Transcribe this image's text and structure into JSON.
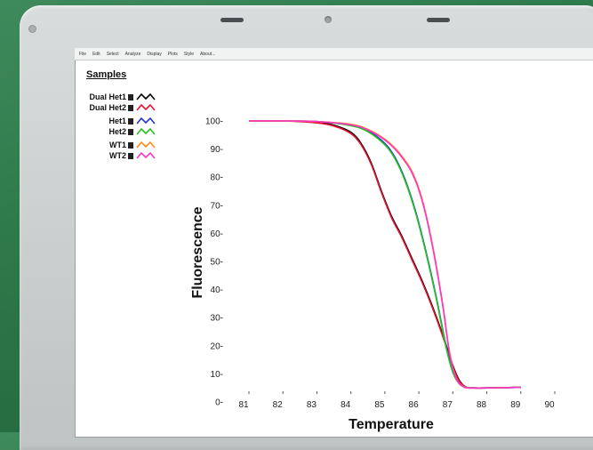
{
  "menu": {
    "items": [
      "File",
      "Edit",
      "Select",
      "Analyze",
      "Display",
      "Plots",
      "Style",
      "About..."
    ]
  },
  "legend": {
    "title": "Samples",
    "items": [
      {
        "label": "Dual Het1",
        "color": "#000000"
      },
      {
        "label": "Dual Het2",
        "color": "#e8102c"
      },
      {
        "label": "Het1",
        "color": "#2233cc"
      },
      {
        "label": "Het2",
        "color": "#22c422"
      },
      {
        "label": "WT1",
        "color": "#ff8c1a"
      },
      {
        "label": "WT2",
        "color": "#ff33cc"
      }
    ]
  },
  "chart_data": {
    "type": "line",
    "title": "",
    "xlabel": "Temperature",
    "ylabel": "Fluorescence",
    "xlim": [
      81,
      90
    ],
    "ylim": [
      0,
      100
    ],
    "x_ticks": [
      "81",
      "82",
      "83",
      "84",
      "85",
      "86",
      "87",
      "88",
      "89",
      "90"
    ],
    "y_ticks": [
      "0-",
      "10-",
      "20-",
      "30-",
      "40-",
      "50-",
      "60-",
      "70-",
      "80-",
      "90-",
      "100-"
    ],
    "grid": false,
    "legend_position": "top-left",
    "series": [
      {
        "name": "Dual Het1",
        "color": "#000000",
        "x": [
          81.0,
          82.0,
          83.0,
          83.5,
          84.0,
          84.3,
          84.6,
          84.9,
          85.2,
          85.5,
          85.8,
          86.1,
          86.4,
          86.7,
          87.0,
          87.2,
          87.4,
          87.6,
          88.0,
          89.0
        ],
        "y": [
          100,
          100,
          99.5,
          98.5,
          96,
          92,
          85,
          75,
          66,
          59,
          51,
          43,
          34,
          24,
          13,
          7.5,
          5.2,
          5,
          5,
          5.2
        ]
      },
      {
        "name": "Dual Het2",
        "color": "#e8102c",
        "x": [
          81.0,
          82.0,
          83.0,
          83.5,
          84.0,
          84.3,
          84.6,
          84.9,
          85.2,
          85.5,
          85.8,
          86.1,
          86.4,
          86.7,
          87.0,
          87.2,
          87.4,
          87.6,
          88.0,
          89.0
        ],
        "y": [
          100,
          100,
          99.3,
          98.2,
          95.5,
          91.5,
          84.5,
          74.5,
          65.5,
          58.5,
          50.5,
          42.5,
          33.5,
          23.5,
          12.5,
          7.2,
          5.2,
          5,
          5,
          5.2
        ]
      },
      {
        "name": "Het1",
        "color": "#2233cc",
        "x": [
          81.0,
          82.0,
          83.0,
          84.0,
          84.5,
          85.0,
          85.3,
          85.6,
          85.9,
          86.2,
          86.5,
          86.8,
          87.0,
          87.2,
          87.4,
          87.6,
          88.0,
          89.0
        ],
        "y": [
          100,
          100,
          99.8,
          98.5,
          96.5,
          92,
          87,
          79,
          68,
          54,
          38,
          20,
          11,
          6.5,
          5.2,
          5,
          5,
          5.2
        ]
      },
      {
        "name": "Het2",
        "color": "#22c422",
        "x": [
          81.0,
          82.0,
          83.0,
          84.0,
          84.5,
          85.0,
          85.3,
          85.6,
          85.9,
          86.2,
          86.5,
          86.8,
          87.0,
          87.2,
          87.4,
          87.6,
          88.0,
          89.0
        ],
        "y": [
          100,
          100,
          99.8,
          98.3,
          96.2,
          91.5,
          86.5,
          78.5,
          67.5,
          53.5,
          37.5,
          19.5,
          10.5,
          6.3,
          5.2,
          5,
          5,
          5.2
        ]
      },
      {
        "name": "WT1",
        "color": "#ff8c1a",
        "x": [
          81.0,
          82.0,
          83.0,
          84.0,
          84.5,
          85.0,
          85.4,
          85.8,
          86.1,
          86.4,
          86.7,
          86.9,
          87.1,
          87.3,
          87.5,
          88.0,
          89.0
        ],
        "y": [
          100,
          100,
          99.8,
          98.8,
          97,
          93.5,
          89,
          82,
          72,
          56,
          35,
          18,
          8.5,
          5.6,
          5,
          5,
          5.2
        ]
      },
      {
        "name": "WT2",
        "color": "#ff33cc",
        "x": [
          81.0,
          82.0,
          83.0,
          84.0,
          84.5,
          85.0,
          85.4,
          85.8,
          86.1,
          86.4,
          86.7,
          86.9,
          87.1,
          87.3,
          87.5,
          88.0,
          89.0
        ],
        "y": [
          100,
          100,
          99.8,
          98.6,
          96.8,
          93.2,
          88.6,
          81.5,
          71.5,
          55.5,
          34.5,
          17.5,
          8.3,
          5.5,
          5,
          5,
          5.2
        ]
      }
    ]
  }
}
